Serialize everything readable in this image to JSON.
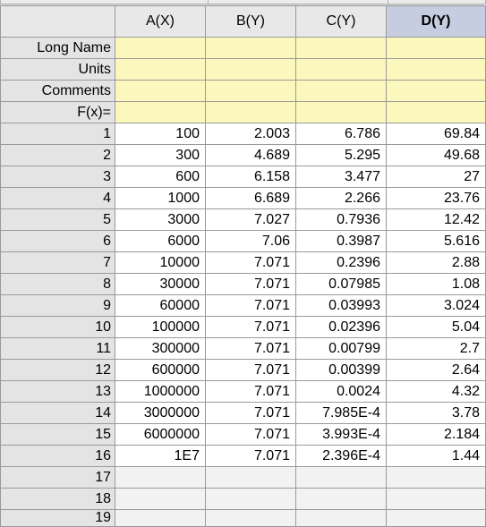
{
  "columns": [
    "A(X)",
    "B(Y)",
    "C(Y)",
    "D(Y)"
  ],
  "selected_column": "D(Y)",
  "meta_rows": [
    "Long Name",
    "Units",
    "Comments",
    "F(x)="
  ],
  "rows": [
    {
      "n": "1",
      "a": "100",
      "b": "2.003",
      "c": "6.786",
      "d": "69.84"
    },
    {
      "n": "2",
      "a": "300",
      "b": "4.689",
      "c": "5.295",
      "d": "49.68"
    },
    {
      "n": "3",
      "a": "600",
      "b": "6.158",
      "c": "3.477",
      "d": "27"
    },
    {
      "n": "4",
      "a": "1000",
      "b": "6.689",
      "c": "2.266",
      "d": "23.76"
    },
    {
      "n": "5",
      "a": "3000",
      "b": "7.027",
      "c": "0.7936",
      "d": "12.42"
    },
    {
      "n": "6",
      "a": "6000",
      "b": "7.06",
      "c": "0.3987",
      "d": "5.616"
    },
    {
      "n": "7",
      "a": "10000",
      "b": "7.071",
      "c": "0.2396",
      "d": "2.88"
    },
    {
      "n": "8",
      "a": "30000",
      "b": "7.071",
      "c": "0.07985",
      "d": "1.08"
    },
    {
      "n": "9",
      "a": "60000",
      "b": "7.071",
      "c": "0.03993",
      "d": "3.024"
    },
    {
      "n": "10",
      "a": "100000",
      "b": "7.071",
      "c": "0.02396",
      "d": "5.04"
    },
    {
      "n": "11",
      "a": "300000",
      "b": "7.071",
      "c": "0.00799",
      "d": "2.7"
    },
    {
      "n": "12",
      "a": "600000",
      "b": "7.071",
      "c": "0.00399",
      "d": "2.64"
    },
    {
      "n": "13",
      "a": "1000000",
      "b": "7.071",
      "c": "0.0024",
      "d": "4.32"
    },
    {
      "n": "14",
      "a": "3000000",
      "b": "7.071",
      "c": "7.985E-4",
      "d": "3.78"
    },
    {
      "n": "15",
      "a": "6000000",
      "b": "7.071",
      "c": "3.993E-4",
      "d": "2.184"
    },
    {
      "n": "16",
      "a": "1E7",
      "b": "7.071",
      "c": "2.396E-4",
      "d": "1.44"
    }
  ],
  "empty_rows": [
    "17",
    "18",
    "19"
  ]
}
